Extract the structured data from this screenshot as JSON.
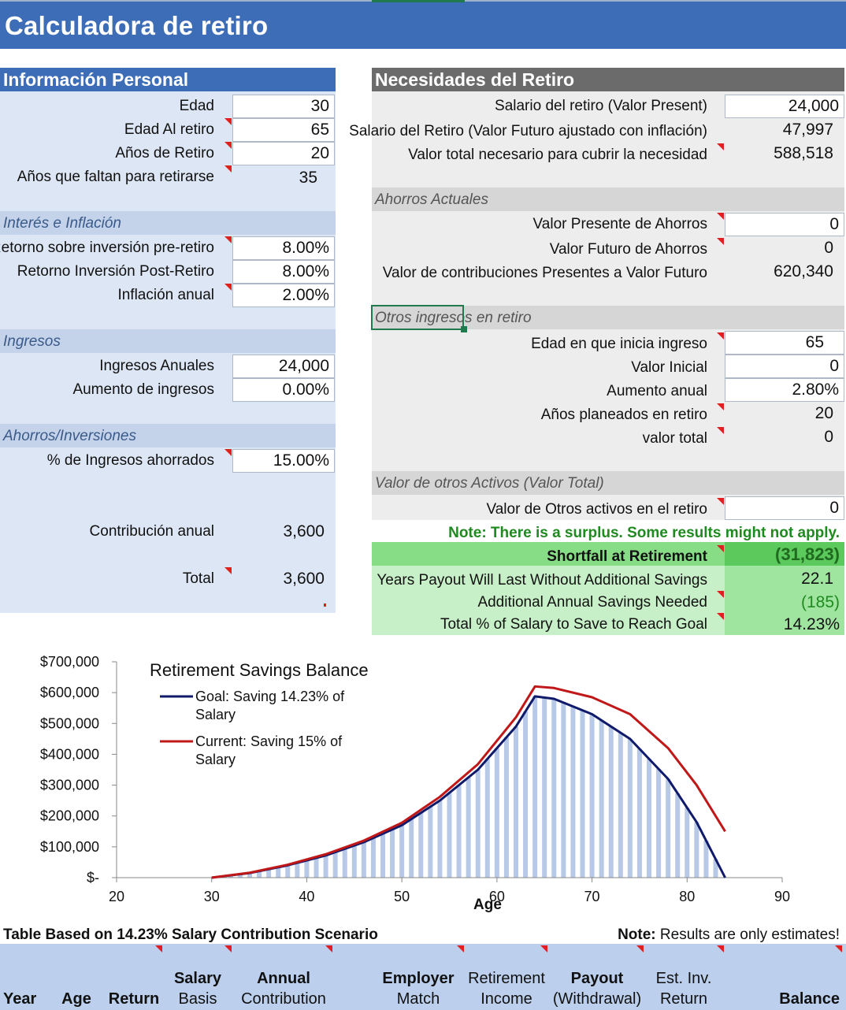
{
  "title": "Calculadora de retiro",
  "personal": {
    "header": "Información Personal",
    "rows": [
      {
        "label": "Edad",
        "value": "30"
      },
      {
        "label": "Edad Al retiro",
        "value": "65"
      },
      {
        "label": "Años de Retiro",
        "value": "20"
      },
      {
        "label": "Años que faltan para retirarse",
        "value": "35"
      }
    ]
  },
  "interest": {
    "header": "Interés e Inflación",
    "rows": [
      {
        "label": "Retorno sobre inversión pre-retiro",
        "value": "8.00%"
      },
      {
        "label": "Retorno Inversión Post-Retiro",
        "value": "8.00%"
      },
      {
        "label": "Inflación anual",
        "value": "2.00%"
      }
    ]
  },
  "income": {
    "header": "Ingresos",
    "rows": [
      {
        "label": "Ingresos Anuales",
        "value": "24,000"
      },
      {
        "label": "Aumento de ingresos",
        "value": "0.00%"
      }
    ]
  },
  "savings": {
    "header": "Ahorros/Inversiones",
    "rows": [
      {
        "label": "% de Ingresos ahorrados",
        "value": "15.00%"
      },
      {
        "label": "Contribución anual",
        "value": "3,600"
      },
      {
        "label": "Total",
        "value": "3,600"
      }
    ]
  },
  "needs": {
    "header": "Necesidades del Retiro",
    "rows": [
      {
        "label": "Salario del retiro (Valor Present)",
        "value": "24,000"
      },
      {
        "label": "Salario del Retiro (Valor Futuro ajustado con inflación)",
        "value": "47,997"
      },
      {
        "label": "Valor total necesario para cubrir la necesidad",
        "value": "588,518"
      }
    ]
  },
  "current_savings": {
    "header": "Ahorros Actuales",
    "rows": [
      {
        "label": "Valor Presente de Ahorros",
        "value": "0"
      },
      {
        "label": "Valor Futuro de Ahorros",
        "value": "0"
      },
      {
        "label": "Valor de contribuciones Presentes a Valor Futuro",
        "value": "620,340"
      }
    ]
  },
  "other_income": {
    "header": "Otros ingresos en retiro",
    "rows": [
      {
        "label": "Edad en que inicia ingreso",
        "value": "65"
      },
      {
        "label": "Valor Inicial",
        "value": "0"
      },
      {
        "label": "Aumento anual",
        "value": "2.80%"
      },
      {
        "label": "Años planeados en retiro",
        "value": "20"
      },
      {
        "label": "valor total",
        "value": "0"
      }
    ]
  },
  "other_assets": {
    "header": "Valor de otros Activos (Valor Total)",
    "rows": [
      {
        "label": "Valor de Otros activos en el retiro",
        "value": "0"
      }
    ]
  },
  "results": {
    "note": "Note: There is a surplus. Some results might not apply.",
    "rows": [
      {
        "label": "Shortfall at Retirement",
        "value": "(31,823)"
      },
      {
        "label": "Years Payout Will Last Without Additional Savings",
        "value": "22.1"
      },
      {
        "label": "Additional Annual Savings Needed",
        "value": "(185)"
      },
      {
        "label": "Total % of Salary to Save to Reach Goal",
        "value": "14.23%"
      }
    ]
  },
  "colors": {
    "title_bar": "#3d6db7",
    "section_blue": "#3d6db7",
    "section_gray": "#6b6b6b",
    "goal_line": "#101a6a",
    "current_line": "#c01818",
    "surplus_green": "#1f8a1f"
  },
  "chart_data": {
    "type": "line",
    "title": "Retirement Savings Balance",
    "xlabel": "Age",
    "ylabel": "",
    "xlim": [
      20,
      90
    ],
    "ylim": [
      0,
      700000
    ],
    "x_ticks": [
      "20",
      "30",
      "40",
      "50",
      "60",
      "70",
      "80",
      "90"
    ],
    "y_ticks": [
      "$-",
      "$100,000",
      "$200,000",
      "$300,000",
      "$400,000",
      "$500,000",
      "$600,000",
      "$700,000"
    ],
    "legend_position": "top-left",
    "series": [
      {
        "name": "Goal: Saving 14.23% of Salary",
        "x": [
          30,
          34,
          38,
          42,
          46,
          50,
          54,
          58,
          62,
          64,
          66,
          70,
          74,
          78,
          81,
          84
        ],
        "values": [
          0,
          15000,
          40000,
          72000,
          115000,
          170000,
          250000,
          350000,
          490000,
          588000,
          580000,
          530000,
          450000,
          320000,
          180000,
          0
        ]
      },
      {
        "name": "Current: Saving 15% of Salary",
        "x": [
          30,
          34,
          38,
          42,
          46,
          50,
          54,
          58,
          62,
          64,
          66,
          70,
          74,
          78,
          81,
          84
        ],
        "values": [
          0,
          16000,
          42000,
          76000,
          120000,
          178000,
          262000,
          368000,
          520000,
          620000,
          615000,
          585000,
          530000,
          420000,
          300000,
          150000
        ]
      }
    ]
  },
  "table": {
    "caption": "Table Based on 14.23% Salary Contribution Scenario",
    "note_bold": "Note:",
    "note_text": "Results are only estimates!",
    "columns": [
      {
        "top": "",
        "bottom": "Year",
        "bold": true
      },
      {
        "top": "",
        "bottom": "Age",
        "bold": true
      },
      {
        "top": "",
        "bottom": "Return",
        "bold": true
      },
      {
        "top": "Salary",
        "bottom": "Basis",
        "bold": true
      },
      {
        "top": "Annual",
        "bottom": "Contribution",
        "bold": true
      },
      {
        "top": "Employer",
        "bottom": "Match",
        "bold": true
      },
      {
        "top": "Retirement",
        "bottom": "Income",
        "bold": false
      },
      {
        "top": "Payout",
        "bottom": "(Withdrawal)",
        "bold": true
      },
      {
        "top": "Est. Inv.",
        "bottom": "Return",
        "bold": false
      },
      {
        "top": "",
        "bottom": "Balance",
        "bold": true
      }
    ]
  }
}
